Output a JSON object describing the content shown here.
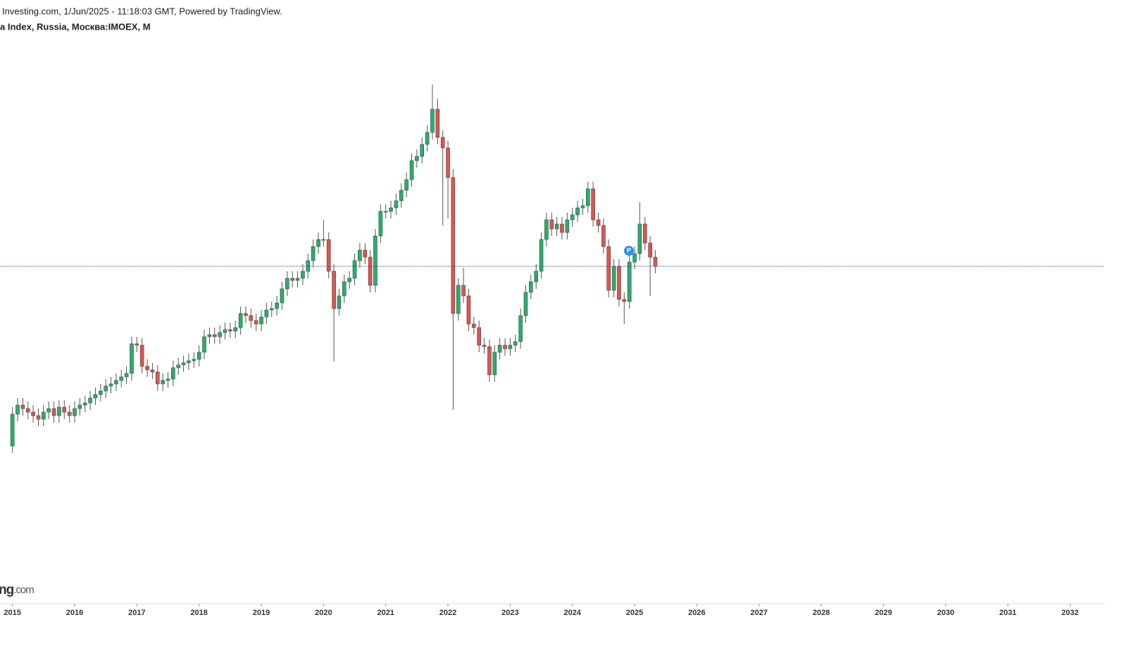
{
  "header": {
    "source": "Investing.com, 1/Jun/2025 - 11:18:03 GMT, Powered by TradingView.",
    "instrument": "a Index, Russia, Москва:IMOEX, M"
  },
  "watermark": {
    "bold": "ng",
    "rest": ".com"
  },
  "chart_data": {
    "type": "candlestick",
    "up_color": "#22b26b",
    "down_color": "#e0534d",
    "wick_color": "#555555",
    "price_line_color": "#2a3fb0",
    "marker_label": "P",
    "marker_color": "#2196f3",
    "xlim": [
      2014.8,
      2032.55
    ],
    "xticks": [
      2015,
      2016,
      2017,
      2018,
      2019,
      2020,
      2021,
      2022,
      2023,
      2024,
      2025,
      2026,
      2027,
      2028,
      2029,
      2030,
      2031,
      2032
    ],
    "ylim": [
      0,
      5040
    ],
    "x": [
      2015,
      2015.083,
      2015.167,
      2015.25,
      2015.333,
      2015.417,
      2015.5,
      2015.583,
      2015.667,
      2015.75,
      2015.833,
      2015.917,
      2016,
      2016.083,
      2016.167,
      2016.25,
      2016.333,
      2016.417,
      2016.5,
      2016.583,
      2016.667,
      2016.75,
      2016.833,
      2016.917,
      2017,
      2017.083,
      2017.167,
      2017.25,
      2017.333,
      2017.417,
      2017.5,
      2017.583,
      2017.667,
      2017.75,
      2017.833,
      2017.917,
      2018,
      2018.083,
      2018.167,
      2018.25,
      2018.333,
      2018.417,
      2018.5,
      2018.583,
      2018.667,
      2018.75,
      2018.833,
      2018.917,
      2019,
      2019.083,
      2019.167,
      2019.25,
      2019.333,
      2019.417,
      2019.5,
      2019.583,
      2019.667,
      2019.75,
      2019.833,
      2019.917,
      2020,
      2020.083,
      2020.167,
      2020.25,
      2020.333,
      2020.417,
      2020.5,
      2020.583,
      2020.667,
      2020.75,
      2020.833,
      2020.917,
      2021,
      2021.083,
      2021.167,
      2021.25,
      2021.333,
      2021.417,
      2021.5,
      2021.583,
      2021.667,
      2021.75,
      2021.833,
      2021.917,
      2022,
      2022.083,
      2022.167,
      2022.25,
      2022.333,
      2022.417,
      2022.5,
      2022.583,
      2022.667,
      2022.75,
      2022.833,
      2022.917,
      2023,
      2023.083,
      2023.167,
      2023.25,
      2023.333,
      2023.417,
      2023.5,
      2023.583,
      2023.667,
      2023.75,
      2023.833,
      2023.917,
      2024,
      2024.083,
      2024.167,
      2024.25,
      2024.333,
      2024.417,
      2024.5,
      2024.583,
      2024.667,
      2024.75,
      2024.833,
      2024.917,
      2025,
      2025.083,
      2025.167,
      2025.25,
      2025.333
    ],
    "open": [
      1242,
      1512,
      1590,
      1560,
      1530,
      1500,
      1470,
      1530,
      1560,
      1500,
      1572,
      1530,
      1500,
      1560,
      1590,
      1608,
      1650,
      1680,
      1710,
      1752,
      1770,
      1800,
      1830,
      1860,
      2112,
      2100,
      1920,
      1890,
      1872,
      1770,
      1800,
      1812,
      1908,
      1932,
      1950,
      1968,
      1980,
      2040,
      2172,
      2190,
      2172,
      2208,
      2232,
      2220,
      2250,
      2370,
      2352,
      2310,
      2280,
      2340,
      2400,
      2412,
      2460,
      2580,
      2670,
      2652,
      2670,
      2730,
      2820,
      2940,
      3000,
      3000,
      2730,
      2412,
      2520,
      2640,
      2670,
      2820,
      2910,
      2850,
      2610,
      3030,
      3240,
      3240,
      3270,
      3330,
      3420,
      3510,
      3672,
      3708,
      3810,
      3912,
      4110,
      3870,
      3780,
      3528,
      2370,
      2610,
      2520,
      2280,
      2250,
      2100,
      2088,
      1848,
      2040,
      2100,
      2070,
      2100,
      2130,
      2352,
      2550,
      2640,
      2730,
      3000,
      3168,
      3090,
      3132,
      3060,
      3168,
      3210,
      3270,
      3288,
      3432,
      3168,
      3120,
      2940,
      2568,
      2772,
      2490,
      2472,
      2808,
      2880,
      3132,
      2970,
      2850
    ],
    "high": [
      1572,
      1650,
      1650,
      1620,
      1590,
      1560,
      1590,
      1620,
      1620,
      1632,
      1632,
      1590,
      1620,
      1650,
      1668,
      1710,
      1740,
      1770,
      1812,
      1830,
      1860,
      1890,
      1920,
      2172,
      2172,
      2160,
      1980,
      1950,
      1932,
      1860,
      1872,
      1968,
      1992,
      2010,
      2028,
      2040,
      2100,
      2232,
      2250,
      2250,
      2268,
      2292,
      2292,
      2310,
      2430,
      2430,
      2412,
      2370,
      2400,
      2460,
      2472,
      2520,
      2640,
      2730,
      2730,
      2730,
      2790,
      2880,
      3000,
      3060,
      3168,
      3060,
      2790,
      2580,
      2700,
      2730,
      2880,
      2970,
      2970,
      2910,
      3090,
      3300,
      3300,
      3330,
      3390,
      3480,
      3570,
      3732,
      3768,
      3870,
      3972,
      4320,
      4200,
      3930,
      3840,
      3600,
      2670,
      2760,
      2580,
      2340,
      2310,
      2160,
      2148,
      2100,
      2160,
      2160,
      2160,
      2190,
      2412,
      2610,
      2700,
      2790,
      3060,
      3228,
      3228,
      3192,
      3192,
      3228,
      3270,
      3330,
      3348,
      3492,
      3492,
      3228,
      3180,
      3000,
      2832,
      2832,
      2550,
      2868,
      2940,
      3318,
      3192,
      3030,
      2910
    ],
    "low": [
      1182,
      1452,
      1500,
      1470,
      1440,
      1410,
      1410,
      1470,
      1440,
      1440,
      1470,
      1440,
      1440,
      1500,
      1530,
      1548,
      1590,
      1620,
      1650,
      1692,
      1710,
      1740,
      1770,
      1800,
      2040,
      1860,
      1830,
      1812,
      1710,
      1710,
      1740,
      1752,
      1848,
      1872,
      1890,
      1908,
      1920,
      1980,
      2112,
      2112,
      2112,
      2148,
      2160,
      2160,
      2190,
      2292,
      2250,
      2220,
      2220,
      2280,
      2340,
      2352,
      2400,
      2520,
      2592,
      2592,
      2610,
      2670,
      2760,
      2880,
      2940,
      2670,
      1962,
      2352,
      2460,
      2580,
      2610,
      2760,
      2790,
      2550,
      2550,
      2970,
      3180,
      3180,
      3210,
      3270,
      3360,
      3450,
      3612,
      3648,
      3750,
      3852,
      3810,
      3120,
      3180,
      1548,
      2310,
      2460,
      2220,
      2190,
      2040,
      2028,
      1788,
      1788,
      1980,
      2010,
      2010,
      2040,
      2070,
      2292,
      2490,
      2580,
      2670,
      2940,
      3030,
      3030,
      3000,
      3000,
      3108,
      3150,
      3210,
      3228,
      3108,
      3060,
      2880,
      2508,
      2508,
      2430,
      2280,
      2412,
      2748,
      2820,
      2910,
      2520,
      2712
    ],
    "close": [
      1512,
      1590,
      1560,
      1530,
      1500,
      1470,
      1530,
      1560,
      1500,
      1572,
      1530,
      1500,
      1560,
      1590,
      1608,
      1650,
      1680,
      1710,
      1752,
      1770,
      1800,
      1830,
      1860,
      2112,
      2100,
      1920,
      1890,
      1872,
      1770,
      1800,
      1812,
      1908,
      1932,
      1950,
      1968,
      1980,
      2040,
      2172,
      2190,
      2172,
      2208,
      2232,
      2220,
      2250,
      2370,
      2352,
      2310,
      2280,
      2340,
      2400,
      2412,
      2460,
      2580,
      2670,
      2652,
      2670,
      2730,
      2820,
      2940,
      3000,
      3000,
      2730,
      2412,
      2520,
      2640,
      2670,
      2820,
      2910,
      2850,
      2610,
      3030,
      3240,
      3240,
      3270,
      3330,
      3420,
      3510,
      3672,
      3708,
      3810,
      3912,
      4110,
      3870,
      3780,
      3528,
      2370,
      2610,
      2520,
      2280,
      2250,
      2100,
      2088,
      1848,
      2040,
      2100,
      2070,
      2100,
      2130,
      2352,
      2550,
      2640,
      2730,
      3000,
      3168,
      3090,
      3132,
      3060,
      3168,
      3210,
      3270,
      3288,
      3432,
      3168,
      3120,
      2940,
      2568,
      2772,
      2490,
      2472,
      2808,
      2880,
      3132,
      2970,
      2850,
      2772
    ]
  }
}
